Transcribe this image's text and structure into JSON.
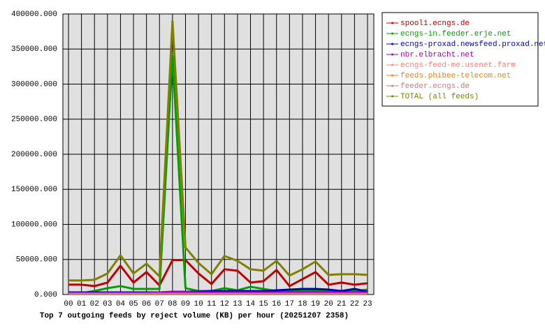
{
  "chart_data": {
    "type": "line",
    "title": "Top 7 outgoing feeds by reject volume (KB) per hour (20251207 2358)",
    "categories": [
      "00",
      "01",
      "02",
      "03",
      "04",
      "05",
      "06",
      "07",
      "08",
      "09",
      "10",
      "11",
      "12",
      "13",
      "14",
      "15",
      "16",
      "17",
      "18",
      "19",
      "20",
      "21",
      "22",
      "23"
    ],
    "ylim": [
      0,
      400000
    ],
    "yticks": [
      {
        "value": 0,
        "label": "0.000"
      },
      {
        "value": 50000,
        "label": "50000.000"
      },
      {
        "value": 100000,
        "label": "100000.000"
      },
      {
        "value": 150000,
        "label": "150000.000"
      },
      {
        "value": 200000,
        "label": "200000.000"
      },
      {
        "value": 250000,
        "label": "250000.000"
      },
      {
        "value": 300000,
        "label": "300000.000"
      },
      {
        "value": 350000,
        "label": "350000.000"
      },
      {
        "value": 400000,
        "label": "400000.000"
      }
    ],
    "grid": true,
    "legend": "right",
    "series": [
      {
        "name": "spool1.ecngs.de",
        "color": "#c00000",
        "values": [
          14000,
          14000,
          12000,
          17000,
          41000,
          17000,
          32000,
          13000,
          49000,
          49000,
          30000,
          15000,
          36000,
          34000,
          17000,
          19000,
          35000,
          12000,
          22000,
          32000,
          14000,
          17000,
          14000,
          16000
        ]
      },
      {
        "name": "ecngs-in.feeder.erje.net",
        "color": "#00a000",
        "values": [
          2000,
          2000,
          5000,
          9000,
          12000,
          8000,
          8000,
          8000,
          340000,
          9000,
          5000,
          5000,
          9000,
          6000,
          11000,
          8000,
          5000,
          5000,
          5000,
          5000,
          5000,
          4000,
          5000,
          7000
        ]
      },
      {
        "name": "ecngs-proxad.newsfeed.proxad.net",
        "color": "#0000c0",
        "values": [
          3000,
          3000,
          3000,
          3000,
          3000,
          3000,
          3000,
          3000,
          3000,
          4000,
          4000,
          5000,
          5000,
          5000,
          5000,
          5000,
          6000,
          7000,
          8000,
          8000,
          7000,
          5000,
          8000,
          4000
        ]
      },
      {
        "name": "nbr.elbracht.net",
        "color": "#a000c0",
        "values": [
          2000,
          2000,
          2000,
          2000,
          2000,
          2000,
          2000,
          3000,
          4000,
          4000,
          3000,
          3000,
          3000,
          3000,
          3000,
          3000,
          3000,
          3000,
          3000,
          3000,
          3000,
          3000,
          3000,
          3000
        ]
      },
      {
        "name": "ecngs-feed-me.usenet.farm",
        "color": "#ff8080",
        "values": [
          1000,
          1000,
          1000,
          1000,
          1000,
          1000,
          1000,
          1000,
          1000,
          1000,
          1000,
          1000,
          1000,
          1000,
          1000,
          1000,
          1000,
          1000,
          1000,
          1000,
          1000,
          1000,
          1000,
          1000
        ]
      },
      {
        "name": "feeds.phibee-telecom.net",
        "color": "#ff8000",
        "values": [
          500,
          500,
          500,
          500,
          500,
          500,
          500,
          500,
          500,
          500,
          500,
          500,
          500,
          500,
          500,
          500,
          500,
          500,
          500,
          500,
          500,
          500,
          500,
          500
        ]
      },
      {
        "name": "feeder.ecngs.de",
        "color": "#c08080",
        "values": [
          500,
          500,
          500,
          500,
          500,
          500,
          500,
          500,
          500,
          500,
          500,
          500,
          500,
          500,
          500,
          500,
          500,
          500,
          500,
          500,
          500,
          500,
          500,
          500
        ]
      },
      {
        "name": "TOTAL (all feeds)",
        "color": "#808000",
        "values": [
          20000,
          20000,
          21000,
          30000,
          56000,
          30000,
          44000,
          26000,
          390000,
          67000,
          45000,
          29000,
          55000,
          48000,
          36000,
          34000,
          48000,
          27000,
          36000,
          47000,
          28000,
          29000,
          29000,
          28000
        ]
      }
    ]
  }
}
